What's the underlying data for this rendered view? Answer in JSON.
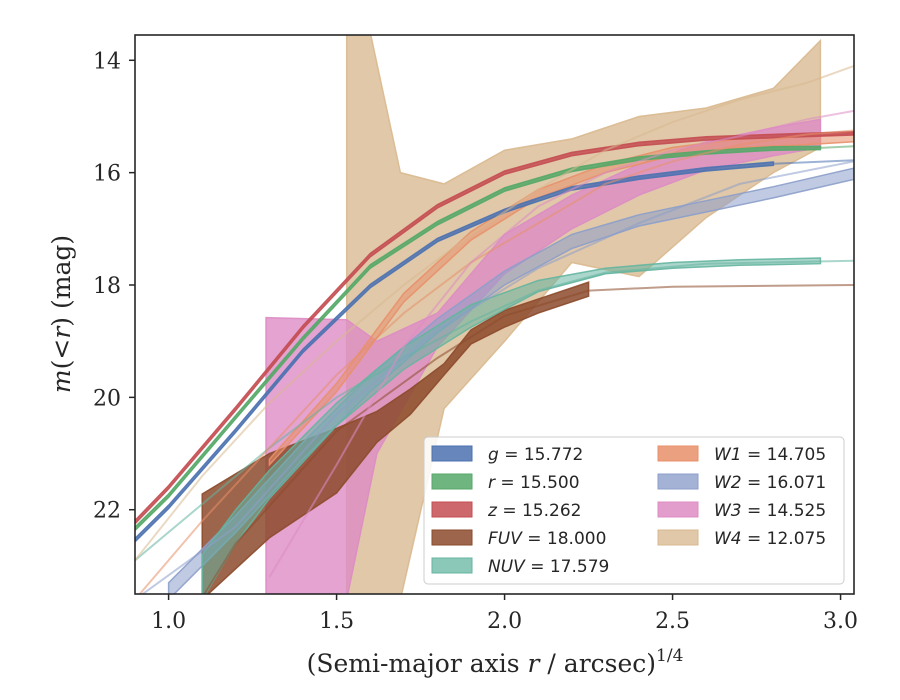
{
  "chart_data": {
    "type": "line",
    "title": "",
    "xlabel": "(Semi-major axis r / arcsec)^{1/4}",
    "xlabel_parts": {
      "pre": "(Semi-major axis ",
      "var": "r",
      "post": " / arcsec)",
      "exp": "1/4"
    },
    "ylabel": "m(<r) (mag)",
    "ylabel_parts": {
      "var": "m",
      "open": "(",
      "lt": "<",
      "r": "r",
      "close": ")",
      "unit": " (mag)"
    },
    "xlim": [
      0.9,
      3.04
    ],
    "ylim": [
      23.5,
      13.55
    ],
    "y_inverted": true,
    "xticks": [
      1.0,
      1.5,
      2.0,
      2.5,
      3.0
    ],
    "xtick_labels": [
      "1.0",
      "1.5",
      "2.0",
      "2.5",
      "3.0"
    ],
    "yticks": [
      14,
      16,
      18,
      20,
      22
    ],
    "ytick_labels": [
      "14",
      "16",
      "18",
      "20",
      "22"
    ],
    "grid": false,
    "legend_position": "lower-right",
    "series": [
      {
        "key": "g",
        "label_var": "g",
        "label_value": "15.772",
        "color": "#4c72b0",
        "band": [
          [
            0.9,
            22.57,
            22.51
          ],
          [
            1.0,
            21.98,
            21.92
          ],
          [
            1.2,
            20.62,
            20.56
          ],
          [
            1.4,
            19.2,
            19.14
          ],
          [
            1.6,
            18.05,
            17.99
          ],
          [
            1.8,
            17.23,
            17.17
          ],
          [
            2.0,
            16.71,
            16.65
          ],
          [
            2.2,
            16.31,
            16.25
          ],
          [
            2.4,
            16.12,
            16.06
          ],
          [
            2.6,
            15.97,
            15.91
          ],
          [
            2.8,
            15.87,
            15.81
          ]
        ],
        "model": [
          [
            2.8,
            15.84
          ],
          [
            3.04,
            15.78
          ]
        ]
      },
      {
        "key": "r",
        "label_var": "r",
        "label_value": "15.500",
        "color": "#55a868",
        "band": [
          [
            0.9,
            22.37,
            22.31
          ],
          [
            1.0,
            21.78,
            21.72
          ],
          [
            1.2,
            20.38,
            20.32
          ],
          [
            1.4,
            18.98,
            18.92
          ],
          [
            1.6,
            17.7,
            17.64
          ],
          [
            1.8,
            16.93,
            16.87
          ],
          [
            2.0,
            16.33,
            16.27
          ],
          [
            2.2,
            15.98,
            15.92
          ],
          [
            2.4,
            15.78,
            15.72
          ],
          [
            2.6,
            15.67,
            15.61
          ],
          [
            2.8,
            15.6,
            15.54
          ],
          [
            2.94,
            15.59,
            15.53
          ]
        ],
        "model": [
          [
            2.94,
            15.56
          ],
          [
            3.04,
            15.53
          ]
        ]
      },
      {
        "key": "z",
        "label_var": "z",
        "label_value": "15.262",
        "color": "#c44e52",
        "band": [
          [
            0.9,
            22.25,
            22.19
          ],
          [
            1.0,
            21.63,
            21.57
          ],
          [
            1.2,
            20.23,
            20.17
          ],
          [
            1.4,
            18.78,
            18.72
          ],
          [
            1.6,
            17.5,
            17.44
          ],
          [
            1.8,
            16.63,
            16.57
          ],
          [
            2.0,
            16.03,
            15.97
          ],
          [
            2.2,
            15.7,
            15.64
          ],
          [
            2.4,
            15.52,
            15.46
          ],
          [
            2.6,
            15.42,
            15.36
          ],
          [
            2.8,
            15.38,
            15.32
          ],
          [
            3.04,
            15.33,
            15.27
          ]
        ],
        "model": []
      },
      {
        "key": "FUV",
        "label_var": "FUV",
        "label_value": "18.000",
        "color": "#8c4a2b",
        "band": [
          [
            1.1,
            23.6,
            21.72
          ],
          [
            1.3,
            22.5,
            21.0
          ],
          [
            1.5,
            21.7,
            20.55
          ],
          [
            1.62,
            20.8,
            20.25
          ],
          [
            1.72,
            20.3,
            19.85
          ],
          [
            1.82,
            19.6,
            19.4
          ],
          [
            1.9,
            19.05,
            18.8
          ],
          [
            2.0,
            18.75,
            18.45
          ],
          [
            2.1,
            18.5,
            18.25
          ],
          [
            2.25,
            18.2,
            17.95
          ]
        ],
        "model": [
          [
            0.9,
            25.5
          ],
          [
            1.2,
            22.6
          ],
          [
            1.5,
            20.6
          ],
          [
            1.8,
            19.3
          ],
          [
            2.0,
            18.55
          ],
          [
            2.25,
            18.1
          ],
          [
            2.5,
            18.03
          ],
          [
            3.04,
            18.0
          ]
        ]
      },
      {
        "key": "NUV",
        "label_var": "NUV",
        "label_value": "17.579",
        "color": "#64b5a0",
        "band": [
          [
            1.1,
            23.6,
            22.8
          ],
          [
            1.2,
            22.6,
            22.0
          ],
          [
            1.3,
            21.8,
            21.3
          ],
          [
            1.5,
            20.5,
            20.1
          ],
          [
            1.7,
            19.5,
            19.1
          ],
          [
            1.9,
            18.75,
            18.35
          ],
          [
            2.1,
            18.12,
            17.92
          ],
          [
            2.3,
            17.8,
            17.7
          ],
          [
            2.5,
            17.7,
            17.6
          ],
          [
            2.7,
            17.65,
            17.55
          ],
          [
            2.94,
            17.62,
            17.52
          ]
        ],
        "model": [
          [
            0.9,
            22.9
          ],
          [
            1.1,
            21.9
          ],
          [
            1.3,
            20.9
          ],
          [
            1.5,
            20.0
          ],
          [
            1.7,
            19.3
          ],
          [
            1.9,
            18.65
          ],
          [
            2.1,
            18.1
          ],
          [
            2.3,
            17.78
          ],
          [
            2.6,
            17.62
          ],
          [
            3.04,
            17.57
          ]
        ]
      },
      {
        "key": "W1",
        "label_var": "W1",
        "label_value": "14.705",
        "color": "#e8906a",
        "band": [
          [
            1.3,
            21.2,
            21.1
          ],
          [
            1.5,
            19.9,
            19.75
          ],
          [
            1.7,
            18.3,
            18.15
          ],
          [
            1.9,
            17.2,
            17.05
          ],
          [
            2.1,
            16.45,
            16.3
          ],
          [
            2.3,
            16.0,
            15.85
          ],
          [
            2.5,
            15.7,
            15.55
          ],
          [
            2.7,
            15.55,
            15.4
          ],
          [
            2.9,
            15.5,
            15.35
          ],
          [
            3.04,
            15.45,
            15.3
          ]
        ],
        "model": [
          [
            0.9,
            23.6
          ],
          [
            1.1,
            22.2
          ],
          [
            1.3,
            20.9
          ],
          [
            1.5,
            19.6
          ],
          [
            1.7,
            18.5
          ],
          [
            1.9,
            17.6
          ],
          [
            2.1,
            16.9
          ],
          [
            2.3,
            16.2
          ],
          [
            2.5,
            15.8
          ],
          [
            2.7,
            15.5
          ],
          [
            2.9,
            15.32
          ],
          [
            3.04,
            15.25
          ]
        ]
      },
      {
        "key": "W2",
        "label_var": "W2",
        "label_value": "16.071",
        "color": "#8c9fca",
        "band": [
          [
            1.0,
            23.6,
            23.3
          ],
          [
            1.2,
            22.4,
            22.1
          ],
          [
            1.4,
            21.1,
            20.8
          ],
          [
            1.6,
            19.9,
            19.6
          ],
          [
            1.8,
            18.85,
            18.6
          ],
          [
            2.0,
            18.0,
            17.75
          ],
          [
            2.2,
            17.35,
            17.1
          ],
          [
            2.4,
            16.95,
            16.75
          ],
          [
            2.6,
            16.7,
            16.5
          ],
          [
            2.8,
            16.45,
            16.25
          ],
          [
            3.04,
            16.12,
            15.92
          ]
        ],
        "model": [
          [
            0.9,
            23.6
          ],
          [
            1.2,
            22.3
          ],
          [
            1.5,
            20.3
          ],
          [
            1.8,
            18.8
          ],
          [
            2.1,
            17.7
          ],
          [
            2.4,
            16.9
          ],
          [
            2.7,
            16.2
          ],
          [
            3.04,
            15.8
          ]
        ]
      },
      {
        "key": "W3",
        "label_var": "W3",
        "label_value": "14.525",
        "color": "#dd8cc4",
        "band": [
          [
            1.29,
            23.6,
            18.58
          ],
          [
            1.53,
            23.6,
            18.62
          ],
          [
            1.62,
            21.0,
            19.0
          ],
          [
            1.8,
            19.1,
            18.5
          ],
          [
            2.0,
            17.8,
            17.1
          ],
          [
            2.2,
            17.0,
            16.4
          ],
          [
            2.4,
            16.4,
            15.85
          ],
          [
            2.6,
            15.95,
            15.45
          ],
          [
            2.8,
            15.7,
            15.2
          ],
          [
            2.94,
            15.55,
            15.05
          ]
        ],
        "model": [
          [
            1.3,
            23.2
          ],
          [
            1.5,
            21.2
          ],
          [
            1.7,
            19.1
          ],
          [
            1.9,
            17.6
          ],
          [
            2.1,
            16.6
          ],
          [
            2.3,
            16.0
          ],
          [
            2.5,
            15.6
          ],
          [
            2.7,
            15.35
          ],
          [
            2.9,
            15.05
          ],
          [
            3.04,
            14.9
          ]
        ]
      },
      {
        "key": "W4",
        "label_var": "W4",
        "label_value": "12.075",
        "color": "#d9b98f",
        "band": [
          [
            1.53,
            23.6,
            13.5
          ],
          [
            1.6,
            23.6,
            13.5
          ],
          [
            1.69,
            23.6,
            16.0
          ],
          [
            1.82,
            20.2,
            16.2
          ],
          [
            2.0,
            19.0,
            15.6
          ],
          [
            2.2,
            17.6,
            15.4
          ],
          [
            2.4,
            17.85,
            15.0
          ],
          [
            2.6,
            16.8,
            14.85
          ],
          [
            2.8,
            16.0,
            14.5
          ],
          [
            2.94,
            15.55,
            13.65
          ]
        ],
        "model": [
          [
            0.9,
            22.9
          ],
          [
            1.1,
            21.4
          ],
          [
            1.3,
            20.1
          ],
          [
            1.5,
            19.0
          ],
          [
            1.7,
            18.0
          ],
          [
            1.9,
            17.1
          ],
          [
            2.1,
            16.3
          ],
          [
            2.3,
            15.6
          ],
          [
            2.5,
            15.1
          ],
          [
            2.7,
            14.7
          ],
          [
            2.9,
            14.4
          ],
          [
            3.04,
            14.1
          ]
        ]
      }
    ]
  }
}
